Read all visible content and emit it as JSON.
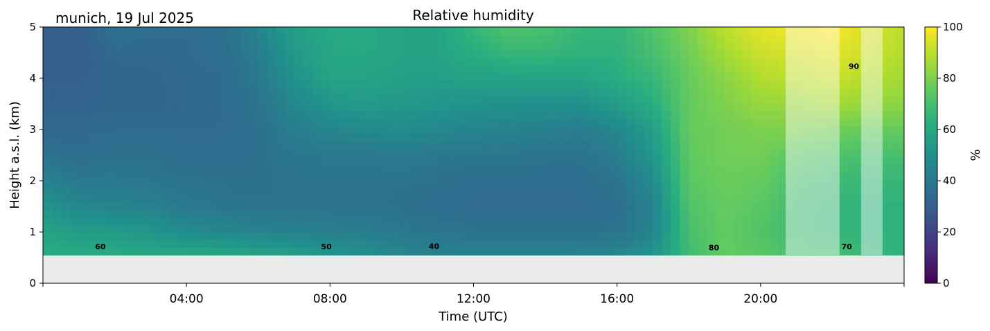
{
  "chart_data": {
    "type": "heatmap",
    "title": "Relative humidity",
    "subtitle": "munich, 19 Jul 2025",
    "xlabel": "Time (UTC)",
    "ylabel": "Height a.s.l. (km)",
    "x_range_hours": [
      0,
      24
    ],
    "ylim": [
      0,
      5
    ],
    "x_ticks": [
      {
        "value": 4,
        "label": "04:00"
      },
      {
        "value": 8,
        "label": "08:00"
      },
      {
        "value": 12,
        "label": "12:00"
      },
      {
        "value": 16,
        "label": "16:00"
      },
      {
        "value": 20,
        "label": "20:00"
      }
    ],
    "y_ticks": [
      {
        "value": 0,
        "label": "0"
      },
      {
        "value": 1,
        "label": "1"
      },
      {
        "value": 2,
        "label": "2"
      },
      {
        "value": 3,
        "label": "3"
      },
      {
        "value": 4,
        "label": "4"
      },
      {
        "value": 5,
        "label": "5"
      }
    ],
    "colorbar": {
      "label": "%",
      "range": [
        0,
        100
      ],
      "colormap": "viridis",
      "ticks": [
        {
          "value": 0,
          "label": "0"
        },
        {
          "value": 20,
          "label": "20"
        },
        {
          "value": 40,
          "label": "40"
        },
        {
          "value": 60,
          "label": "60"
        },
        {
          "value": 80,
          "label": "80"
        },
        {
          "value": 100,
          "label": "100"
        }
      ]
    },
    "data_bottom_km": 0.55,
    "time_hours": [
      0.0,
      1.0,
      2.0,
      3.0,
      4.0,
      5.0,
      6.0,
      7.0,
      8.0,
      9.0,
      10.0,
      11.0,
      12.0,
      13.0,
      14.0,
      15.0,
      16.0,
      17.0,
      18.0,
      19.0,
      20.0,
      21.0,
      22.0,
      23.0,
      24.0
    ],
    "height_km": [
      0.55,
      1.0,
      1.5,
      2.0,
      2.5,
      3.0,
      3.5,
      4.0,
      4.5,
      5.0
    ],
    "humidity_pct": [
      [
        62,
        58,
        52,
        44,
        38,
        34,
        32,
        31,
        30,
        30
      ],
      [
        61,
        55,
        46,
        40,
        36,
        34,
        32,
        31,
        30,
        30
      ],
      [
        61,
        54,
        45,
        40,
        37,
        35,
        33,
        33,
        34,
        38
      ],
      [
        60,
        52,
        44,
        39,
        37,
        35,
        33,
        33,
        34,
        36
      ],
      [
        60,
        48,
        40,
        38,
        36,
        35,
        34,
        34,
        35,
        35
      ],
      [
        60,
        46,
        39,
        37,
        36,
        35,
        35,
        35,
        36,
        36
      ],
      [
        58,
        45,
        38,
        37,
        37,
        37,
        38,
        40,
        42,
        45
      ],
      [
        56,
        44,
        38,
        38,
        39,
        42,
        46,
        50,
        53,
        56
      ],
      [
        52,
        43,
        38,
        38,
        40,
        45,
        52,
        58,
        60,
        60
      ],
      [
        50,
        42,
        38,
        38,
        40,
        47,
        54,
        58,
        60,
        60
      ],
      [
        46,
        40,
        37,
        38,
        41,
        48,
        53,
        56,
        58,
        58
      ],
      [
        44,
        39,
        36,
        37,
        40,
        46,
        52,
        56,
        58,
        58
      ],
      [
        44,
        38,
        35,
        36,
        39,
        45,
        51,
        57,
        62,
        66
      ],
      [
        44,
        38,
        35,
        36,
        39,
        44,
        50,
        57,
        66,
        72
      ],
      [
        44,
        38,
        35,
        36,
        38,
        43,
        50,
        58,
        66,
        70
      ],
      [
        45,
        38,
        35,
        36,
        38,
        42,
        50,
        58,
        64,
        66
      ],
      [
        46,
        38,
        36,
        38,
        42,
        46,
        55,
        62,
        64,
        65
      ],
      [
        52,
        45,
        44,
        48,
        52,
        56,
        62,
        66,
        70,
        72
      ],
      [
        68,
        70,
        72,
        74,
        75,
        76,
        76,
        76,
        78,
        80
      ],
      [
        76,
        76,
        76,
        77,
        78,
        78,
        80,
        82,
        86,
        90
      ],
      [
        74,
        72,
        74,
        76,
        78,
        80,
        84,
        88,
        92,
        96
      ],
      [
        70,
        68,
        68,
        70,
        74,
        80,
        84,
        90,
        94,
        98
      ],
      [
        70,
        66,
        66,
        68,
        72,
        78,
        86,
        92,
        96,
        100
      ],
      [
        66,
        64,
        64,
        66,
        70,
        76,
        84,
        88,
        92,
        94
      ],
      [
        64,
        64,
        64,
        66,
        70,
        76,
        82,
        86,
        88,
        90
      ]
    ],
    "contour_labels": [
      {
        "text": "60",
        "x": 1.6,
        "y": 0.66
      },
      {
        "text": "50",
        "x": 7.9,
        "y": 0.66
      },
      {
        "text": "40",
        "x": 10.9,
        "y": 0.67
      },
      {
        "text": "80",
        "x": 18.7,
        "y": 0.64
      },
      {
        "text": "70",
        "x": 22.4,
        "y": 0.66
      },
      {
        "text": "90",
        "x": 22.6,
        "y": 4.18
      }
    ],
    "masked_time_intervals": [
      [
        20.7,
        22.2
      ],
      [
        22.8,
        23.4
      ]
    ]
  }
}
